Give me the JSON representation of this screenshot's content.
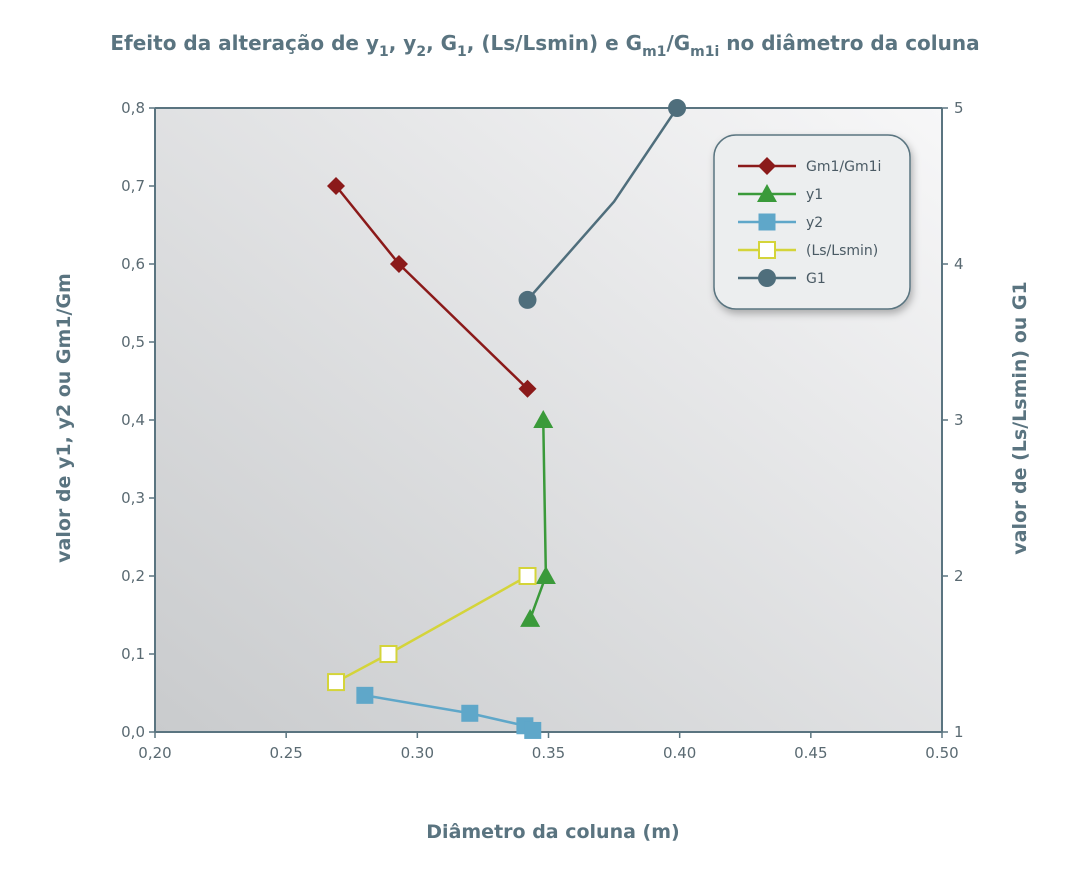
{
  "chart_data": {
    "type": "line",
    "title": {
      "parts": [
        {
          "t": "Efeito da alteração de y"
        },
        {
          "t": "1",
          "sub": true
        },
        {
          "t": ", y"
        },
        {
          "t": "2",
          "sub": true
        },
        {
          "t": ", G"
        },
        {
          "t": "1",
          "sub": true
        },
        {
          "t": ", (Ls/Lsmin) e G"
        },
        {
          "t": "m1",
          "sub": true
        },
        {
          "t": "/G"
        },
        {
          "t": "m1i",
          "sub": true
        },
        {
          "t": " no diâmetro da coluna"
        }
      ]
    },
    "xlabel": "Diâmetro da coluna (m)",
    "ylabel_left": "valor de y1, y2 ou Gm1/Gm",
    "ylabel_right": "valor de (Ls/Lsmin) ou G1",
    "xlim": [
      0.2,
      0.5
    ],
    "ylim_left": [
      0.0,
      0.8
    ],
    "ylim_right": [
      1,
      5
    ],
    "x_ticks": [
      "0,20",
      "0.25",
      "0.30",
      "0.35",
      "0.40",
      "0.45",
      "0.50"
    ],
    "x_tick_values": [
      0.2,
      0.25,
      0.3,
      0.35,
      0.4,
      0.45,
      0.5
    ],
    "y_left_ticks": [
      "0,0",
      "0,1",
      "0,2",
      "0,3",
      "0,4",
      "0,5",
      "0,6",
      "0,7",
      "0,8"
    ],
    "y_left_tick_values": [
      0.0,
      0.1,
      0.2,
      0.3,
      0.4,
      0.5,
      0.6,
      0.7,
      0.8
    ],
    "y_right_ticks": [
      "1",
      "2",
      "3",
      "4",
      "5"
    ],
    "y_right_tick_values": [
      1,
      2,
      3,
      4,
      5
    ],
    "legend_position": "top-right",
    "grid": false,
    "colors": {
      "plot_bg_light": "#f7f7f8",
      "plot_bg_dark": "#c9cbcd",
      "axis": "#5a7480",
      "text": "#5a7480"
    },
    "series": [
      {
        "name": "Gm1/Gm1i",
        "axis": "left",
        "marker": "diamond",
        "color": "#8b1a1a",
        "points": [
          [
            0.269,
            0.7
          ],
          [
            0.293,
            0.6
          ],
          [
            0.342,
            0.44
          ]
        ]
      },
      {
        "name": "y1",
        "axis": "left",
        "marker": "triangle",
        "color": "#3a9a3a",
        "points": [
          [
            0.348,
            0.4
          ],
          [
            0.349,
            0.2
          ],
          [
            0.343,
            0.145
          ]
        ]
      },
      {
        "name": "y2",
        "axis": "left",
        "marker": "square",
        "color": "#5fa7c9",
        "points": [
          [
            0.28,
            0.047
          ],
          [
            0.32,
            0.024
          ],
          [
            0.341,
            0.008
          ],
          [
            0.344,
            0.002
          ]
        ]
      },
      {
        "name": "(Ls/Lsmin)",
        "axis": "right",
        "marker": "open-square",
        "color": "#d4d43a",
        "points": [
          [
            0.269,
            1.32
          ],
          [
            0.289,
            1.5
          ],
          [
            0.342,
            2.0
          ]
        ]
      },
      {
        "name": "G1",
        "axis": "right",
        "marker": "circle",
        "color": "#4f6e7c",
        "points": [
          [
            0.342,
            3.77
          ],
          [
            0.375,
            4.4
          ],
          [
            0.399,
            5.0
          ]
        ],
        "marker_indices": [
          0,
          2
        ]
      }
    ]
  }
}
